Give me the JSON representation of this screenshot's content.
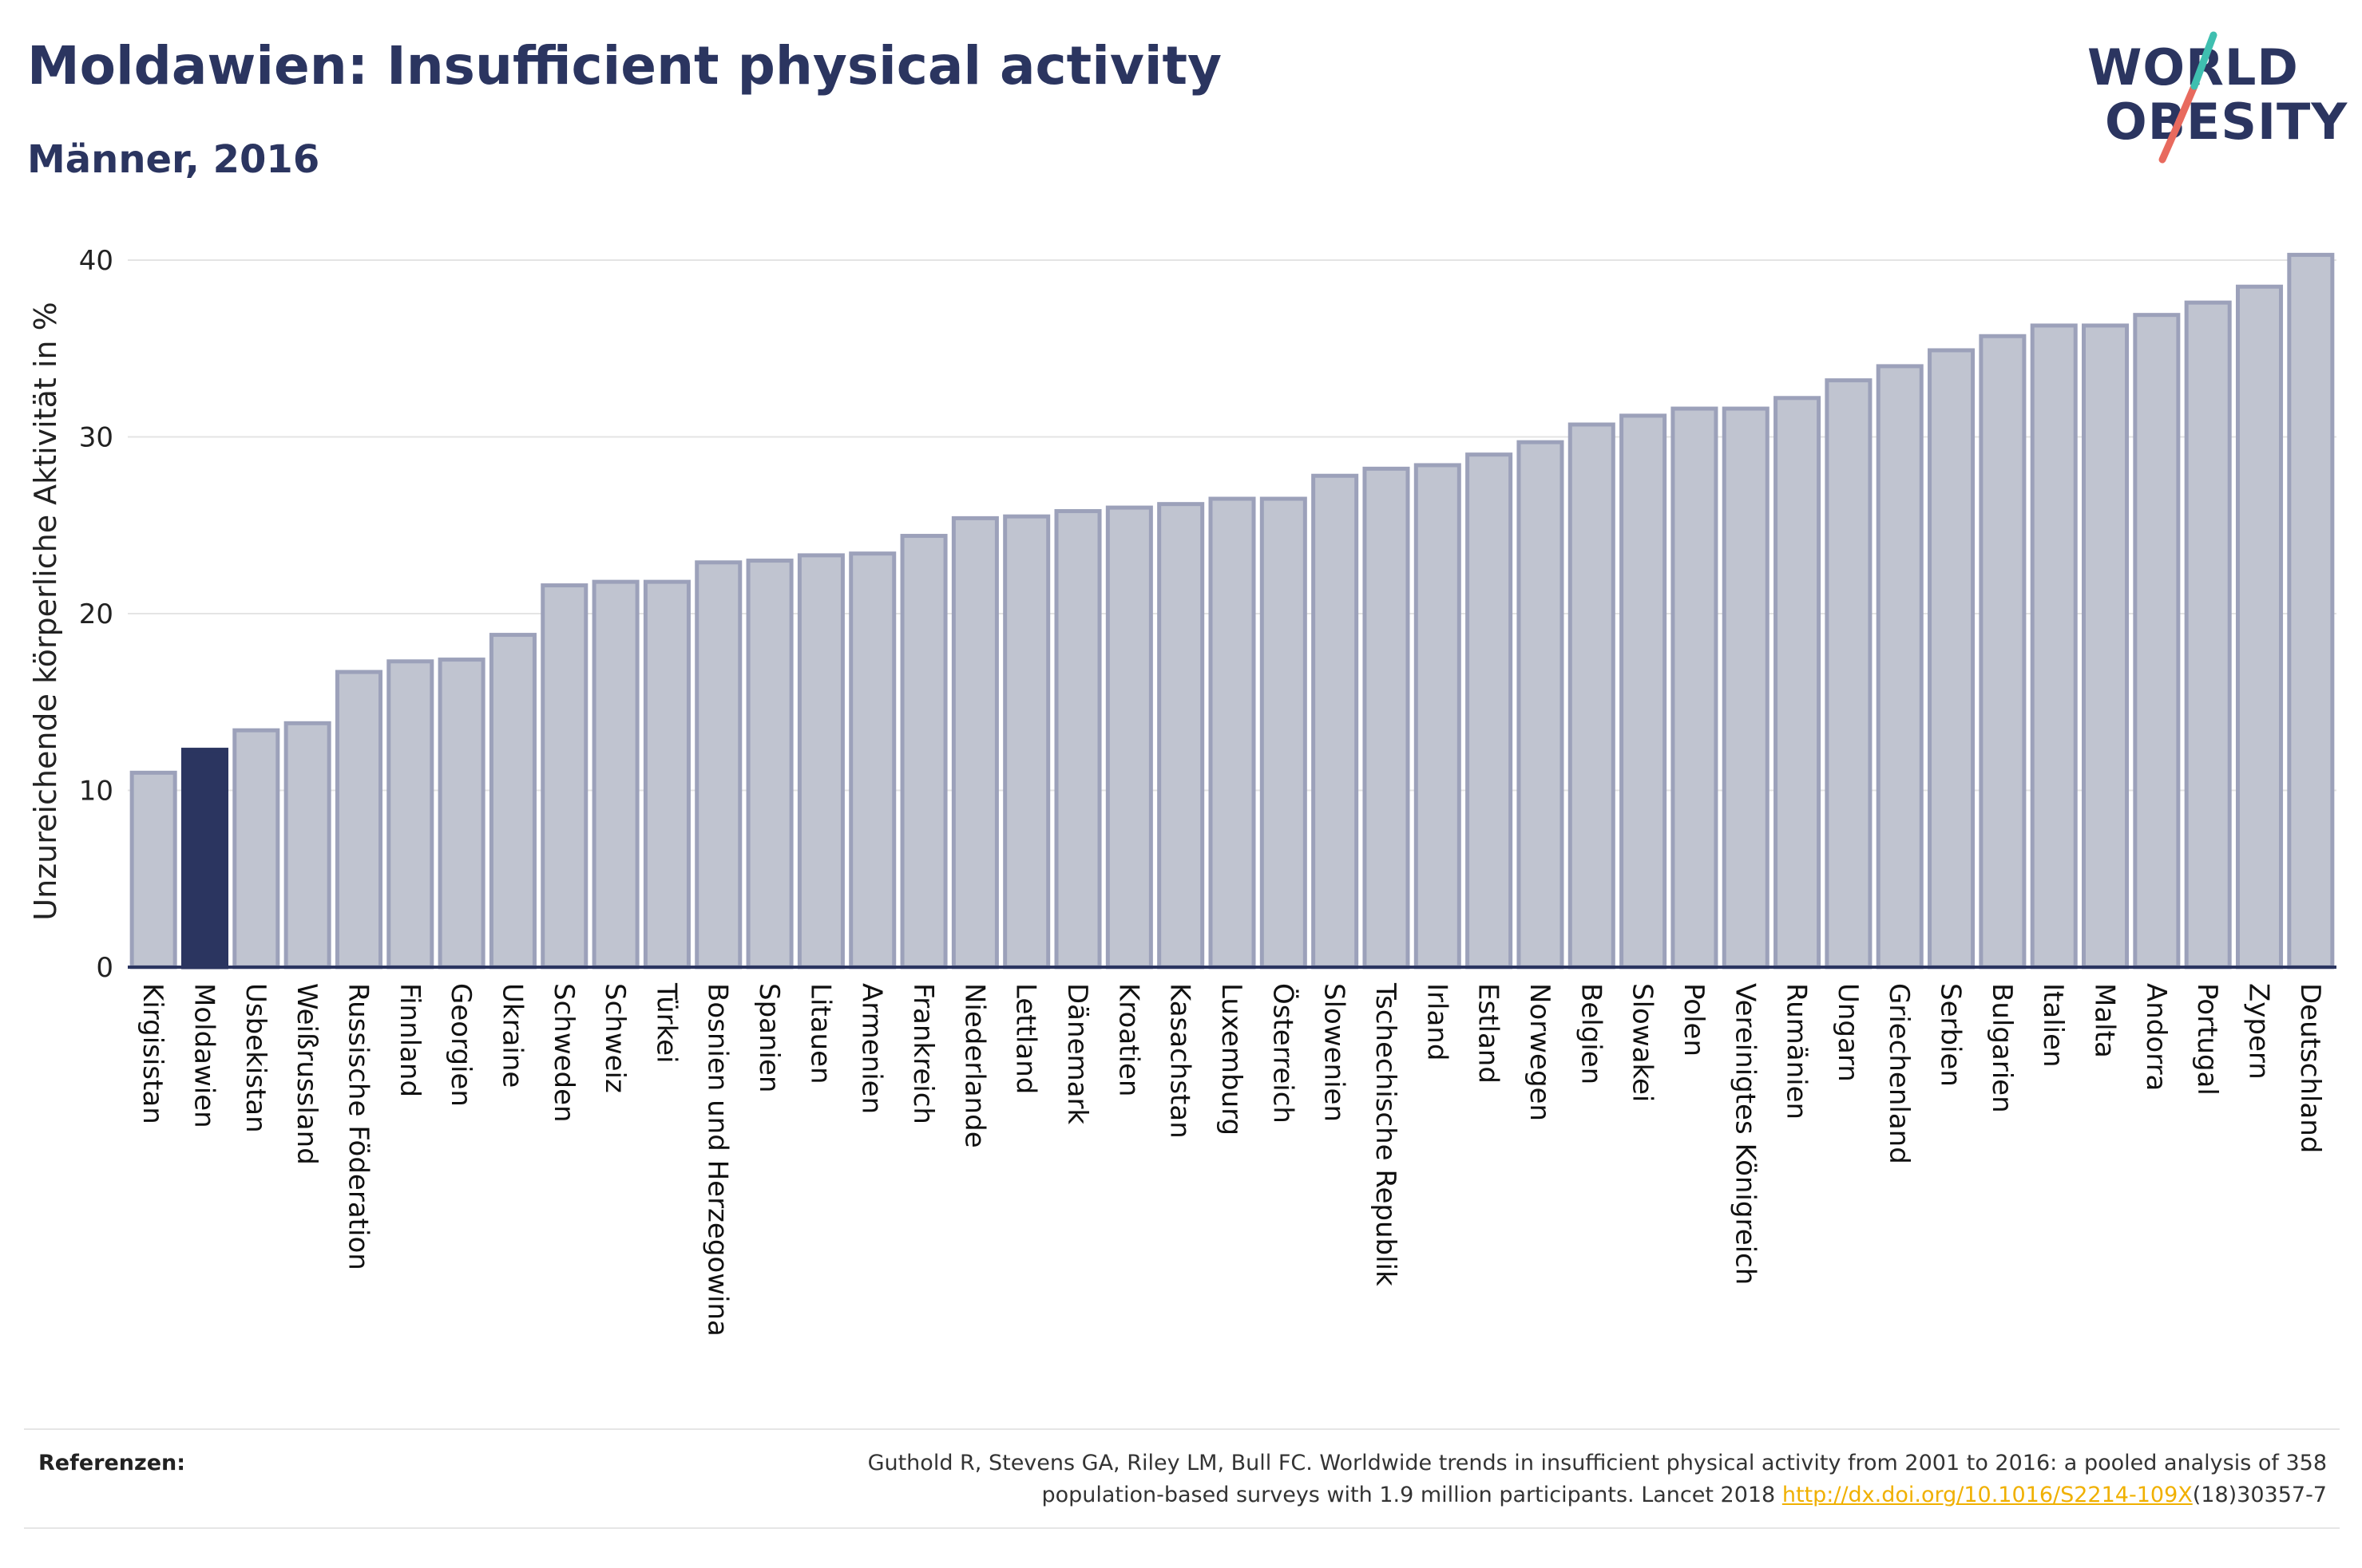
{
  "header": {
    "title": "Moldawien: Insufficient physical activity",
    "subtitle": "Männer, 2016"
  },
  "logo": {
    "line1": "WORLD",
    "line2": "OBESITY",
    "accent_colors": [
      "#3fbfb0",
      "#e86a5e"
    ]
  },
  "references": {
    "label": "Referenzen:",
    "line1": "Guthold R, Stevens GA, Riley LM, Bull FC. Worldwide trends in insufficient physical activity from 2001 to 2016: a pooled analysis of 358",
    "line2_prefix": "population-based surveys with 1.9 million participants. Lancet 2018 ",
    "link_text": "http://dx.doi.org/10.1016/S2214-109X",
    "line2_suffix": "(18)30357-7"
  },
  "colors": {
    "bar": "#c0c4d0",
    "bar_stroke": "#9ca1ba",
    "highlight": "#2b3560",
    "grid": "#e4e4e4",
    "axis": "#2b3560"
  },
  "chart_data": {
    "type": "bar",
    "title": "Moldawien: Insufficient physical activity",
    "subtitle": "Männer, 2016",
    "xlabel": "",
    "ylabel": "Unzureichende körperliche Aktivität in %",
    "ylim": [
      0,
      40
    ],
    "yticks": [
      0,
      10,
      20,
      30,
      40
    ],
    "grid": true,
    "highlight": "Moldawien",
    "categories": [
      "Kirgisistan",
      "Moldawien",
      "Usbekistan",
      "Weißrussland",
      "Russische Föderation",
      "Finnland",
      "Georgien",
      "Ukraine",
      "Schweden",
      "Schweiz",
      "Türkei",
      "Bosnien und Herzegowina",
      "Spanien",
      "Litauen",
      "Armenien",
      "Frankreich",
      "Niederlande",
      "Lettland",
      "Dänemark",
      "Kroatien",
      "Kasachstan",
      "Luxemburg",
      "Österreich",
      "Slowenien",
      "Tschechische Republik",
      "Irland",
      "Estland",
      "Norwegen",
      "Belgien",
      "Slowakei",
      "Polen",
      "Vereinigtes Königreich",
      "Rumänien",
      "Ungarn",
      "Griechenland",
      "Serbien",
      "Bulgarien",
      "Italien",
      "Malta",
      "Andorra",
      "Portugal",
      "Zypern",
      "Deutschland"
    ],
    "values": [
      11.0,
      12.3,
      13.4,
      13.8,
      16.7,
      17.3,
      17.4,
      18.8,
      21.6,
      21.8,
      21.8,
      22.9,
      23.0,
      23.3,
      23.4,
      24.4,
      25.4,
      25.5,
      25.8,
      26.0,
      26.2,
      26.5,
      26.5,
      27.8,
      28.2,
      28.4,
      29.0,
      29.7,
      30.7,
      31.2,
      31.6,
      31.6,
      32.2,
      33.2,
      34.0,
      34.9,
      35.7,
      36.3,
      36.3,
      36.9,
      37.6,
      38.5,
      40.3
    ]
  }
}
